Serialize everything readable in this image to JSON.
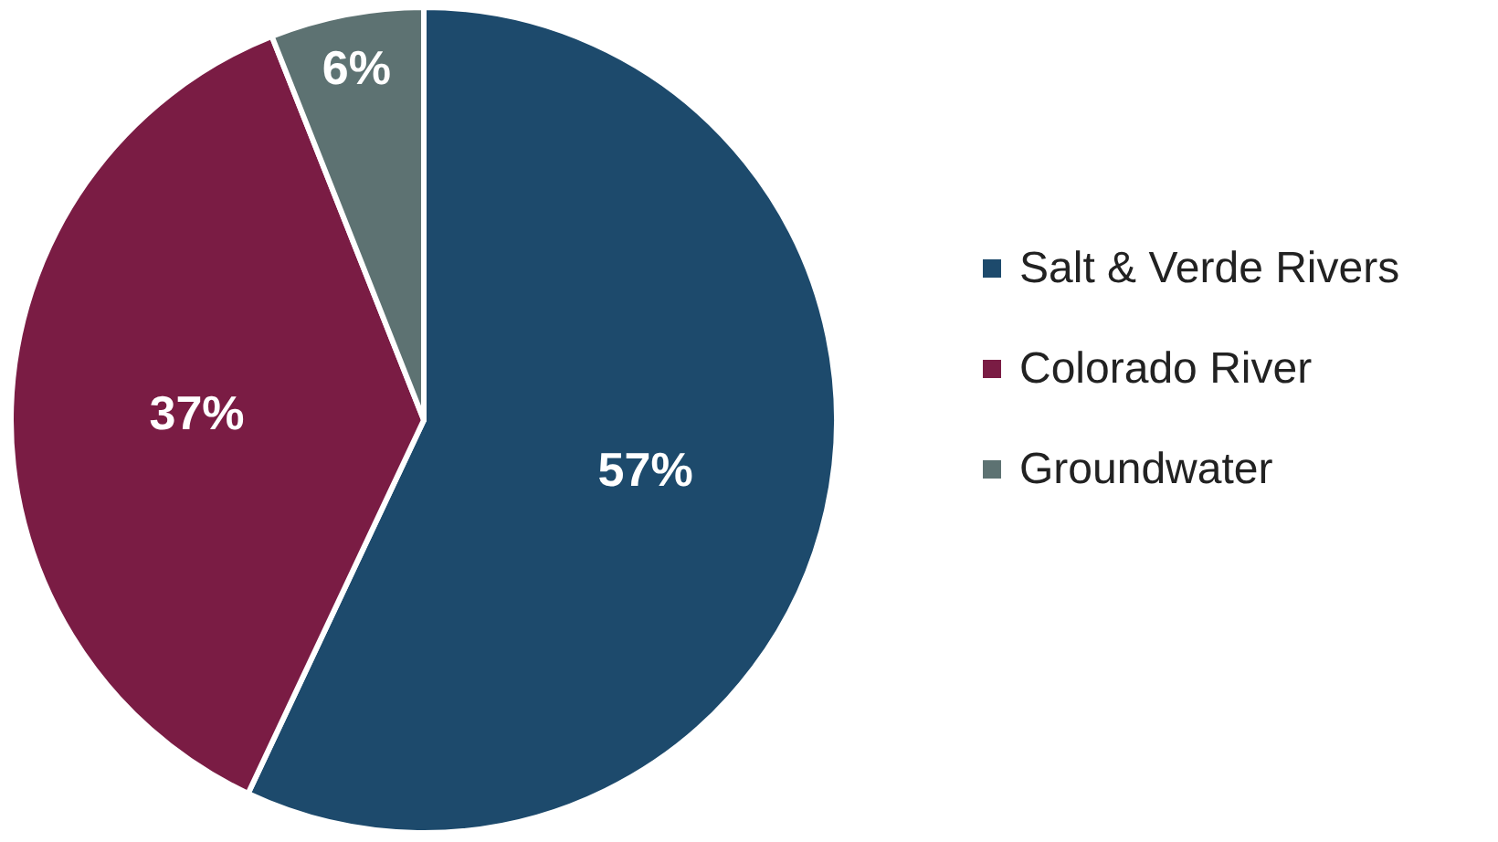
{
  "chart_data": {
    "type": "pie",
    "categories": [
      "Salt & Verde Rivers",
      "Colorado River",
      "Groundwater"
    ],
    "values": [
      57,
      37,
      6
    ],
    "value_labels": [
      "57%",
      "37%",
      "6%"
    ],
    "colors": [
      "#1d4a6c",
      "#7a1c44",
      "#5d7272"
    ],
    "legend": "right"
  }
}
